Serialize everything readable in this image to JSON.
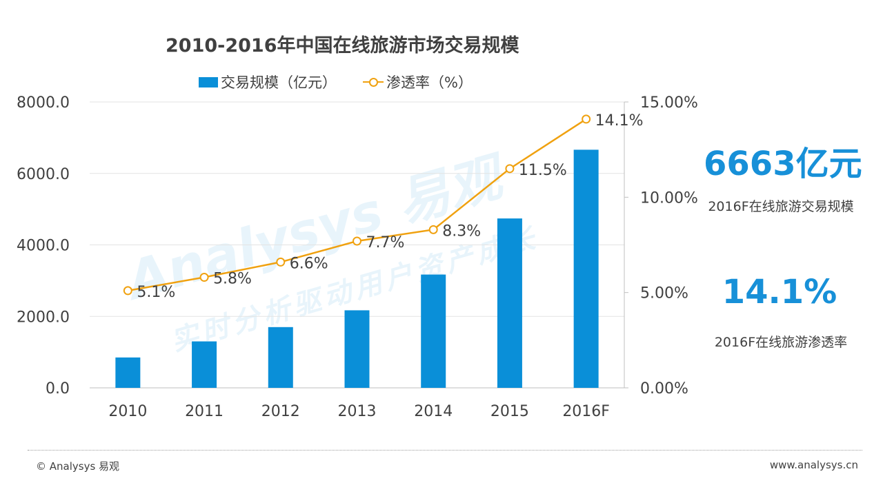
{
  "chart_data": {
    "type": "bar",
    "title": "2010-2016年中国在线旅游市场交易规模",
    "categories": [
      "2010",
      "2011",
      "2012",
      "2013",
      "2014",
      "2015",
      "2016F"
    ],
    "series": [
      {
        "name": "交易规模（亿元）",
        "type": "bar",
        "axis": "left",
        "color": "#0a8fd8",
        "values": [
          850,
          1300,
          1700,
          2170,
          3170,
          4740,
          6663
        ]
      },
      {
        "name": "渗透率（%）",
        "type": "line",
        "axis": "right",
        "color": "#f0a10f",
        "values": [
          5.1,
          5.8,
          6.6,
          7.7,
          8.3,
          11.5,
          14.1
        ],
        "labels": [
          "5.1%",
          "5.8%",
          "6.6%",
          "7.7%",
          "8.3%",
          "11.5%",
          "14.1%"
        ]
      }
    ],
    "y_left": {
      "min": 0,
      "max": 8000,
      "ticks": [
        "0.0",
        "2000.0",
        "4000.0",
        "6000.0",
        "8000.0"
      ]
    },
    "y_right": {
      "min": 0,
      "max": 15,
      "ticks": [
        "0.00%",
        "5.00%",
        "10.00%",
        "15.00%"
      ]
    },
    "legend": [
      "交易规模（亿元）",
      "渗透率（%）"
    ],
    "legend_position": "top",
    "grid": true
  },
  "watermark": {
    "main": "Analysys 易观",
    "sub": "实时分析驱动用户资产成长"
  },
  "highlights": {
    "scale_value": "6663亿元",
    "scale_label": "2016F在线旅游交易规模",
    "rate_value": "14.1%",
    "rate_label": "2016F在线旅游渗透率"
  },
  "footer": {
    "left": "© Analysys  易观",
    "right": "www.analysys.cn"
  }
}
